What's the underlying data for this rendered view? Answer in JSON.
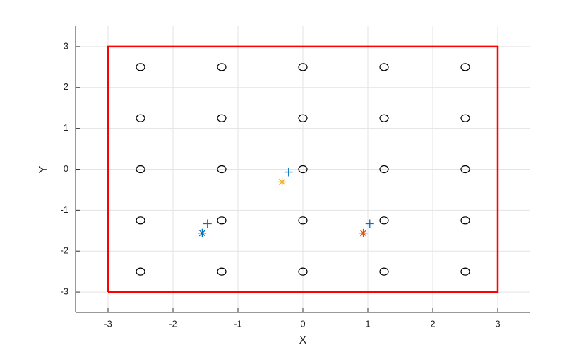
{
  "chart_data": {
    "type": "scatter",
    "xlabel": "X",
    "ylabel": "Y",
    "xlim": [
      -3.5,
      3.5
    ],
    "ylim": [
      -3.5,
      3.5
    ],
    "xticks": [
      -3,
      -2,
      -1,
      0,
      1,
      2,
      3
    ],
    "yticks": [
      -3,
      -2,
      -1,
      0,
      1,
      2,
      3
    ],
    "grid": true,
    "series": [
      {
        "marker": "line",
        "color": "#ff0000",
        "x": [
          -3,
          3,
          3,
          -3,
          -3
        ],
        "y": [
          -3,
          -3,
          3,
          3,
          -3
        ]
      },
      {
        "marker": "o",
        "color": "#000000",
        "x": [
          -2.5,
          -1.25,
          0,
          1.25,
          2.5,
          -2.5,
          -1.25,
          0,
          1.25,
          2.5,
          -2.5,
          -1.25,
          0,
          1.25,
          2.5,
          -2.5,
          -1.25,
          0,
          1.25,
          2.5,
          -2.5,
          -1.25,
          0,
          1.25,
          2.5
        ],
        "y": [
          2.5,
          2.5,
          2.5,
          2.5,
          2.5,
          1.25,
          1.25,
          1.25,
          1.25,
          1.25,
          0,
          0,
          0,
          0,
          0,
          -1.25,
          -1.25,
          -1.25,
          -1.25,
          -1.25,
          -2.5,
          -2.5,
          -2.5,
          -2.5,
          -2.5
        ]
      },
      {
        "marker": "+",
        "color": "#0072bd",
        "x": [
          -1.47,
          -0.22,
          1.03
        ],
        "y": [
          -1.33,
          -0.07,
          -1.33
        ]
      },
      {
        "marker": "*",
        "color": "#0072bd",
        "x": [
          -1.55
        ],
        "y": [
          -1.56
        ]
      },
      {
        "marker": "*",
        "color": "#edb120",
        "x": [
          -0.32
        ],
        "y": [
          -0.31
        ]
      },
      {
        "marker": "*",
        "color": "#d95319",
        "x": [
          0.93
        ],
        "y": [
          -1.56
        ]
      }
    ]
  }
}
